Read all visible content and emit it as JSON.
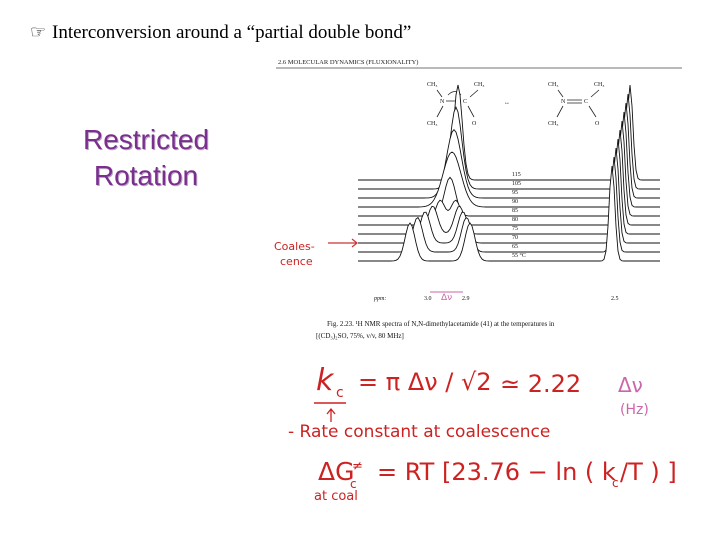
{
  "slide": {
    "bullet_icon": "pointing-hand-icon",
    "title": "Interconversion around a “partial double bond”",
    "subtitle_line1": "Restricted",
    "subtitle_line2": "Rotation"
  },
  "figure": {
    "header": "2.6   MOLECULAR DYNAMICS (FLUXIONALITY)",
    "resonance_arrow": "↔",
    "left_structure": {
      "ch3_a": "CH₃",
      "ch3_b": "CH₃",
      "ch3_c": "CH₃",
      "n": "N",
      "c": "C",
      "o": "O"
    },
    "right_structure": {
      "ch3_a": "CH₃",
      "ch3_b": "CH₃",
      "ch3_c": "CH₃",
      "n": "N",
      "c": "C",
      "o": "O"
    },
    "temperatures": [
      "115",
      "105",
      "95",
      "90",
      "85",
      "80",
      "75",
      "70",
      "65",
      "55 °C"
    ],
    "ppm_label": "ppm:",
    "ppm_ticks": {
      "left": "3.0",
      "right": "2.9",
      "far_right": "2.5"
    },
    "delta_nu_label": "Δν",
    "caption_line1": "Fig. 2.23.  ¹H NMR spectra of N,N-dimethylacetamide (41) at the temperatures in",
    "caption_line2": "[(CD₃)₂SO, 75%, v/v, 80 MHz]",
    "handwritten_coalescence_1": "Coales-",
    "handwritten_coalescence_2": "cence",
    "eq1": {
      "lhs": "k",
      "lhs_sub": "c",
      "middle": "= π Δν / √2",
      "approx": "≃ 2.22",
      "rhs_delta": "Δν",
      "units": "(Hz)"
    },
    "rate_note": "- Rate constant at coalescence",
    "eq2": {
      "lhs": "ΔG",
      "lhs_sub": "c",
      "rhs": "= RT [23.76 − ln ( k",
      "rhs_sub": "c",
      "rhs_end": "/T ) ]",
      "note": "at coal"
    }
  }
}
